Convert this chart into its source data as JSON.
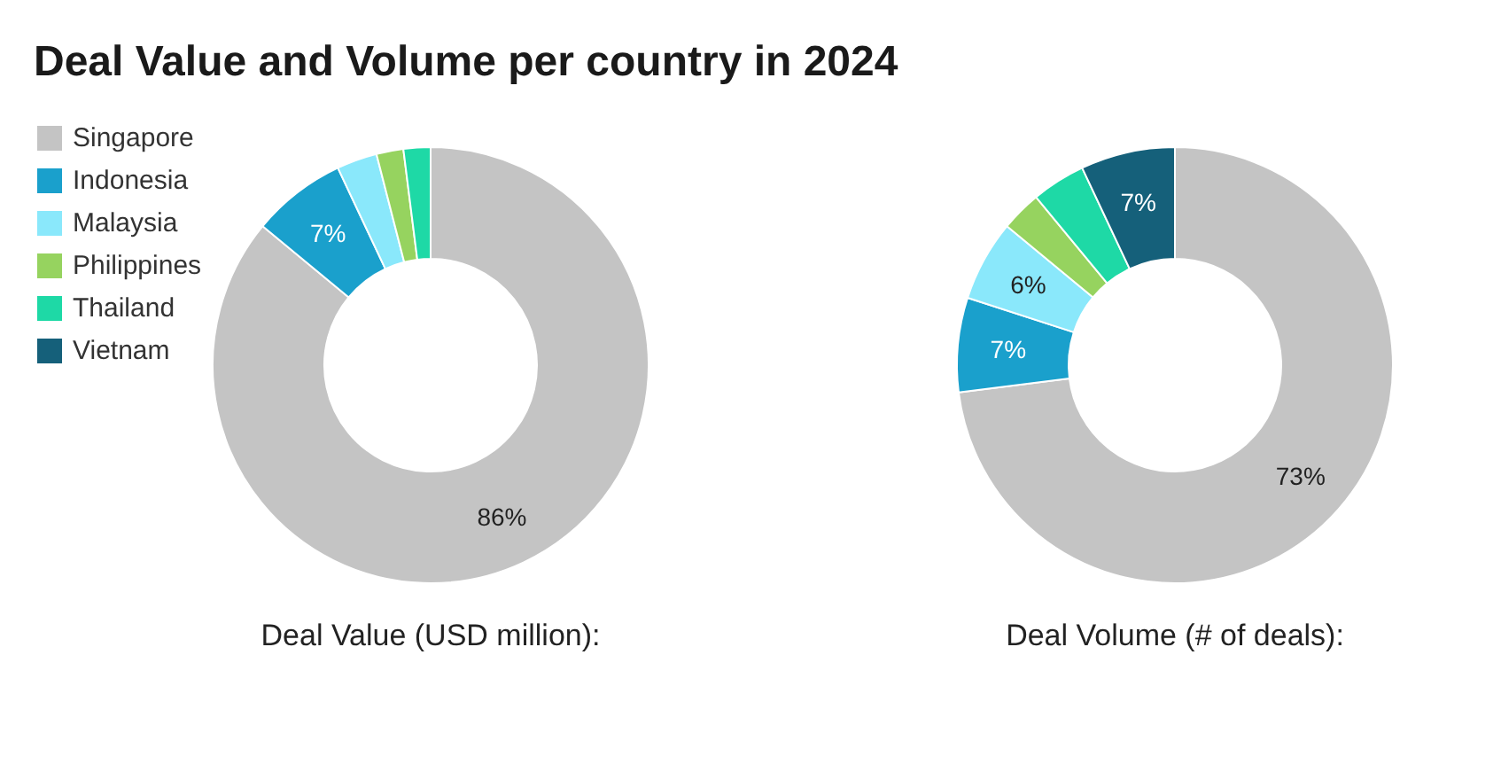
{
  "chart_data": [
    {
      "type": "donut",
      "title": "Deal Value and Volume per country in 2024",
      "xlabel": "Deal Value (USD million):",
      "legend": "left",
      "categories": [
        "Singapore",
        "Indonesia",
        "Malaysia",
        "Philippines",
        "Thailand",
        "Vietnam"
      ],
      "values": [
        86,
        7,
        3,
        2,
        2,
        0
      ],
      "colors": [
        "#c4c4c4",
        "#1aa0cc",
        "#8ae8fb",
        "#96d35f",
        "#1ed9a6",
        "#15607a"
      ],
      "value_labels": [
        "86%",
        "7%",
        null,
        null,
        null,
        null
      ]
    },
    {
      "type": "donut",
      "xlabel": "Deal Volume (# of deals):",
      "categories": [
        null,
        null,
        null,
        null,
        null,
        null
      ],
      "values": [
        73,
        7,
        6,
        3,
        4,
        7
      ],
      "colors": [
        "#c4c4c4",
        "#1aa0cc",
        "#8ae8fb",
        "#96d35f",
        "#1ed9a6",
        "#15607a"
      ],
      "value_labels": [
        "73%",
        "7%",
        "6%",
        null,
        null,
        "7%"
      ]
    }
  ]
}
